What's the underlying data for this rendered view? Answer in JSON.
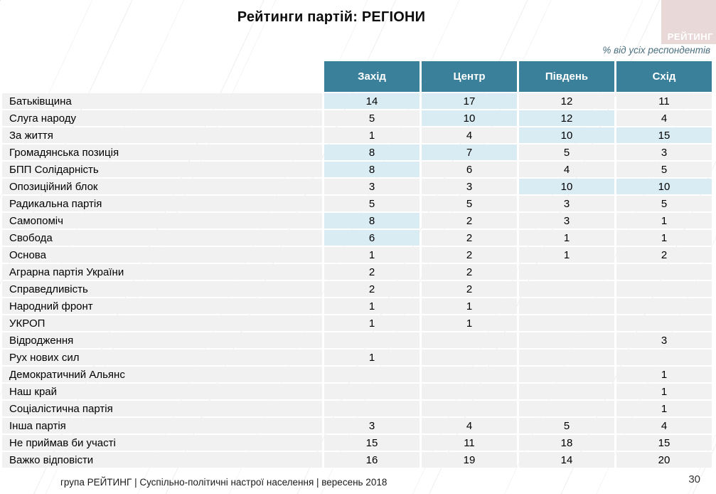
{
  "title": "Рейтинги партій: РЕГІОНИ",
  "note": "% від усіх респондентів",
  "logo_text": "РЕЙТИНГ",
  "colors": {
    "header_bg": "#3A809B",
    "highlight": "#D9ECF4",
    "row_bg": "#F1F1F1",
    "logo_bg": "#E8D8D8"
  },
  "table": {
    "columns": [
      "Захід",
      "Центр",
      "Південь",
      "Схід"
    ],
    "rows": [
      {
        "party": "Батьківщина",
        "values": [
          "14",
          "17",
          "12",
          "11"
        ],
        "highlight": [
          true,
          true,
          false,
          false
        ]
      },
      {
        "party": "Слуга народу",
        "values": [
          "5",
          "10",
          "12",
          "4"
        ],
        "highlight": [
          false,
          true,
          true,
          false
        ]
      },
      {
        "party": "За життя",
        "values": [
          "1",
          "4",
          "10",
          "15"
        ],
        "highlight": [
          false,
          false,
          true,
          true
        ]
      },
      {
        "party": "Громадянська позиція",
        "values": [
          "8",
          "7",
          "5",
          "3"
        ],
        "highlight": [
          true,
          true,
          false,
          false
        ]
      },
      {
        "party": "БПП Солідарність",
        "values": [
          "8",
          "6",
          "4",
          "5"
        ],
        "highlight": [
          true,
          false,
          false,
          false
        ]
      },
      {
        "party": "Опозиційний блок",
        "values": [
          "3",
          "3",
          "10",
          "10"
        ],
        "highlight": [
          false,
          false,
          true,
          true
        ]
      },
      {
        "party": "Радикальна партія",
        "values": [
          "5",
          "5",
          "3",
          "5"
        ],
        "highlight": [
          false,
          false,
          false,
          false
        ]
      },
      {
        "party": "Самопоміч",
        "values": [
          "8",
          "2",
          "3",
          "1"
        ],
        "highlight": [
          true,
          false,
          false,
          false
        ]
      },
      {
        "party": "Свобода",
        "values": [
          "6",
          "2",
          "1",
          "1"
        ],
        "highlight": [
          true,
          false,
          false,
          false
        ]
      },
      {
        "party": "Основа",
        "values": [
          "1",
          "2",
          "1",
          "2"
        ],
        "highlight": [
          false,
          false,
          false,
          false
        ]
      },
      {
        "party": "Аграрна партія України",
        "values": [
          "2",
          "2",
          "",
          ""
        ],
        "highlight": [
          false,
          false,
          false,
          false
        ]
      },
      {
        "party": "Справедливість",
        "values": [
          "2",
          "2",
          "",
          ""
        ],
        "highlight": [
          false,
          false,
          false,
          false
        ]
      },
      {
        "party": "Народний фронт",
        "values": [
          "1",
          "1",
          "",
          ""
        ],
        "highlight": [
          false,
          false,
          false,
          false
        ]
      },
      {
        "party": "УКРОП",
        "values": [
          "1",
          "1",
          "",
          ""
        ],
        "highlight": [
          false,
          false,
          false,
          false
        ]
      },
      {
        "party": "Відродження",
        "values": [
          "",
          "",
          "",
          "3"
        ],
        "highlight": [
          false,
          false,
          false,
          false
        ]
      },
      {
        "party": "Рух нових сил",
        "values": [
          "1",
          "",
          "",
          ""
        ],
        "highlight": [
          false,
          false,
          false,
          false
        ]
      },
      {
        "party": "Демократичний Альянс",
        "values": [
          "",
          "",
          "",
          "1"
        ],
        "highlight": [
          false,
          false,
          false,
          false
        ]
      },
      {
        "party": "Наш край",
        "values": [
          "",
          "",
          "",
          "1"
        ],
        "highlight": [
          false,
          false,
          false,
          false
        ]
      },
      {
        "party": "Соціалістична партія",
        "values": [
          "",
          "",
          "",
          "1"
        ],
        "highlight": [
          false,
          false,
          false,
          false
        ]
      },
      {
        "party": "Інша партія",
        "values": [
          "3",
          "4",
          "5",
          "4"
        ],
        "highlight": [
          false,
          false,
          false,
          false
        ]
      },
      {
        "party": "Не приймав би участі",
        "values": [
          "15",
          "11",
          "18",
          "15"
        ],
        "highlight": [
          false,
          false,
          false,
          false
        ]
      },
      {
        "party": "Важко відповісти",
        "values": [
          "16",
          "19",
          "14",
          "20"
        ],
        "highlight": [
          false,
          false,
          false,
          false
        ]
      }
    ]
  },
  "footer": {
    "source": "група РЕЙТИНГ |  Суспільно-політичні настрої населення | вересень  2018",
    "page": "30"
  }
}
